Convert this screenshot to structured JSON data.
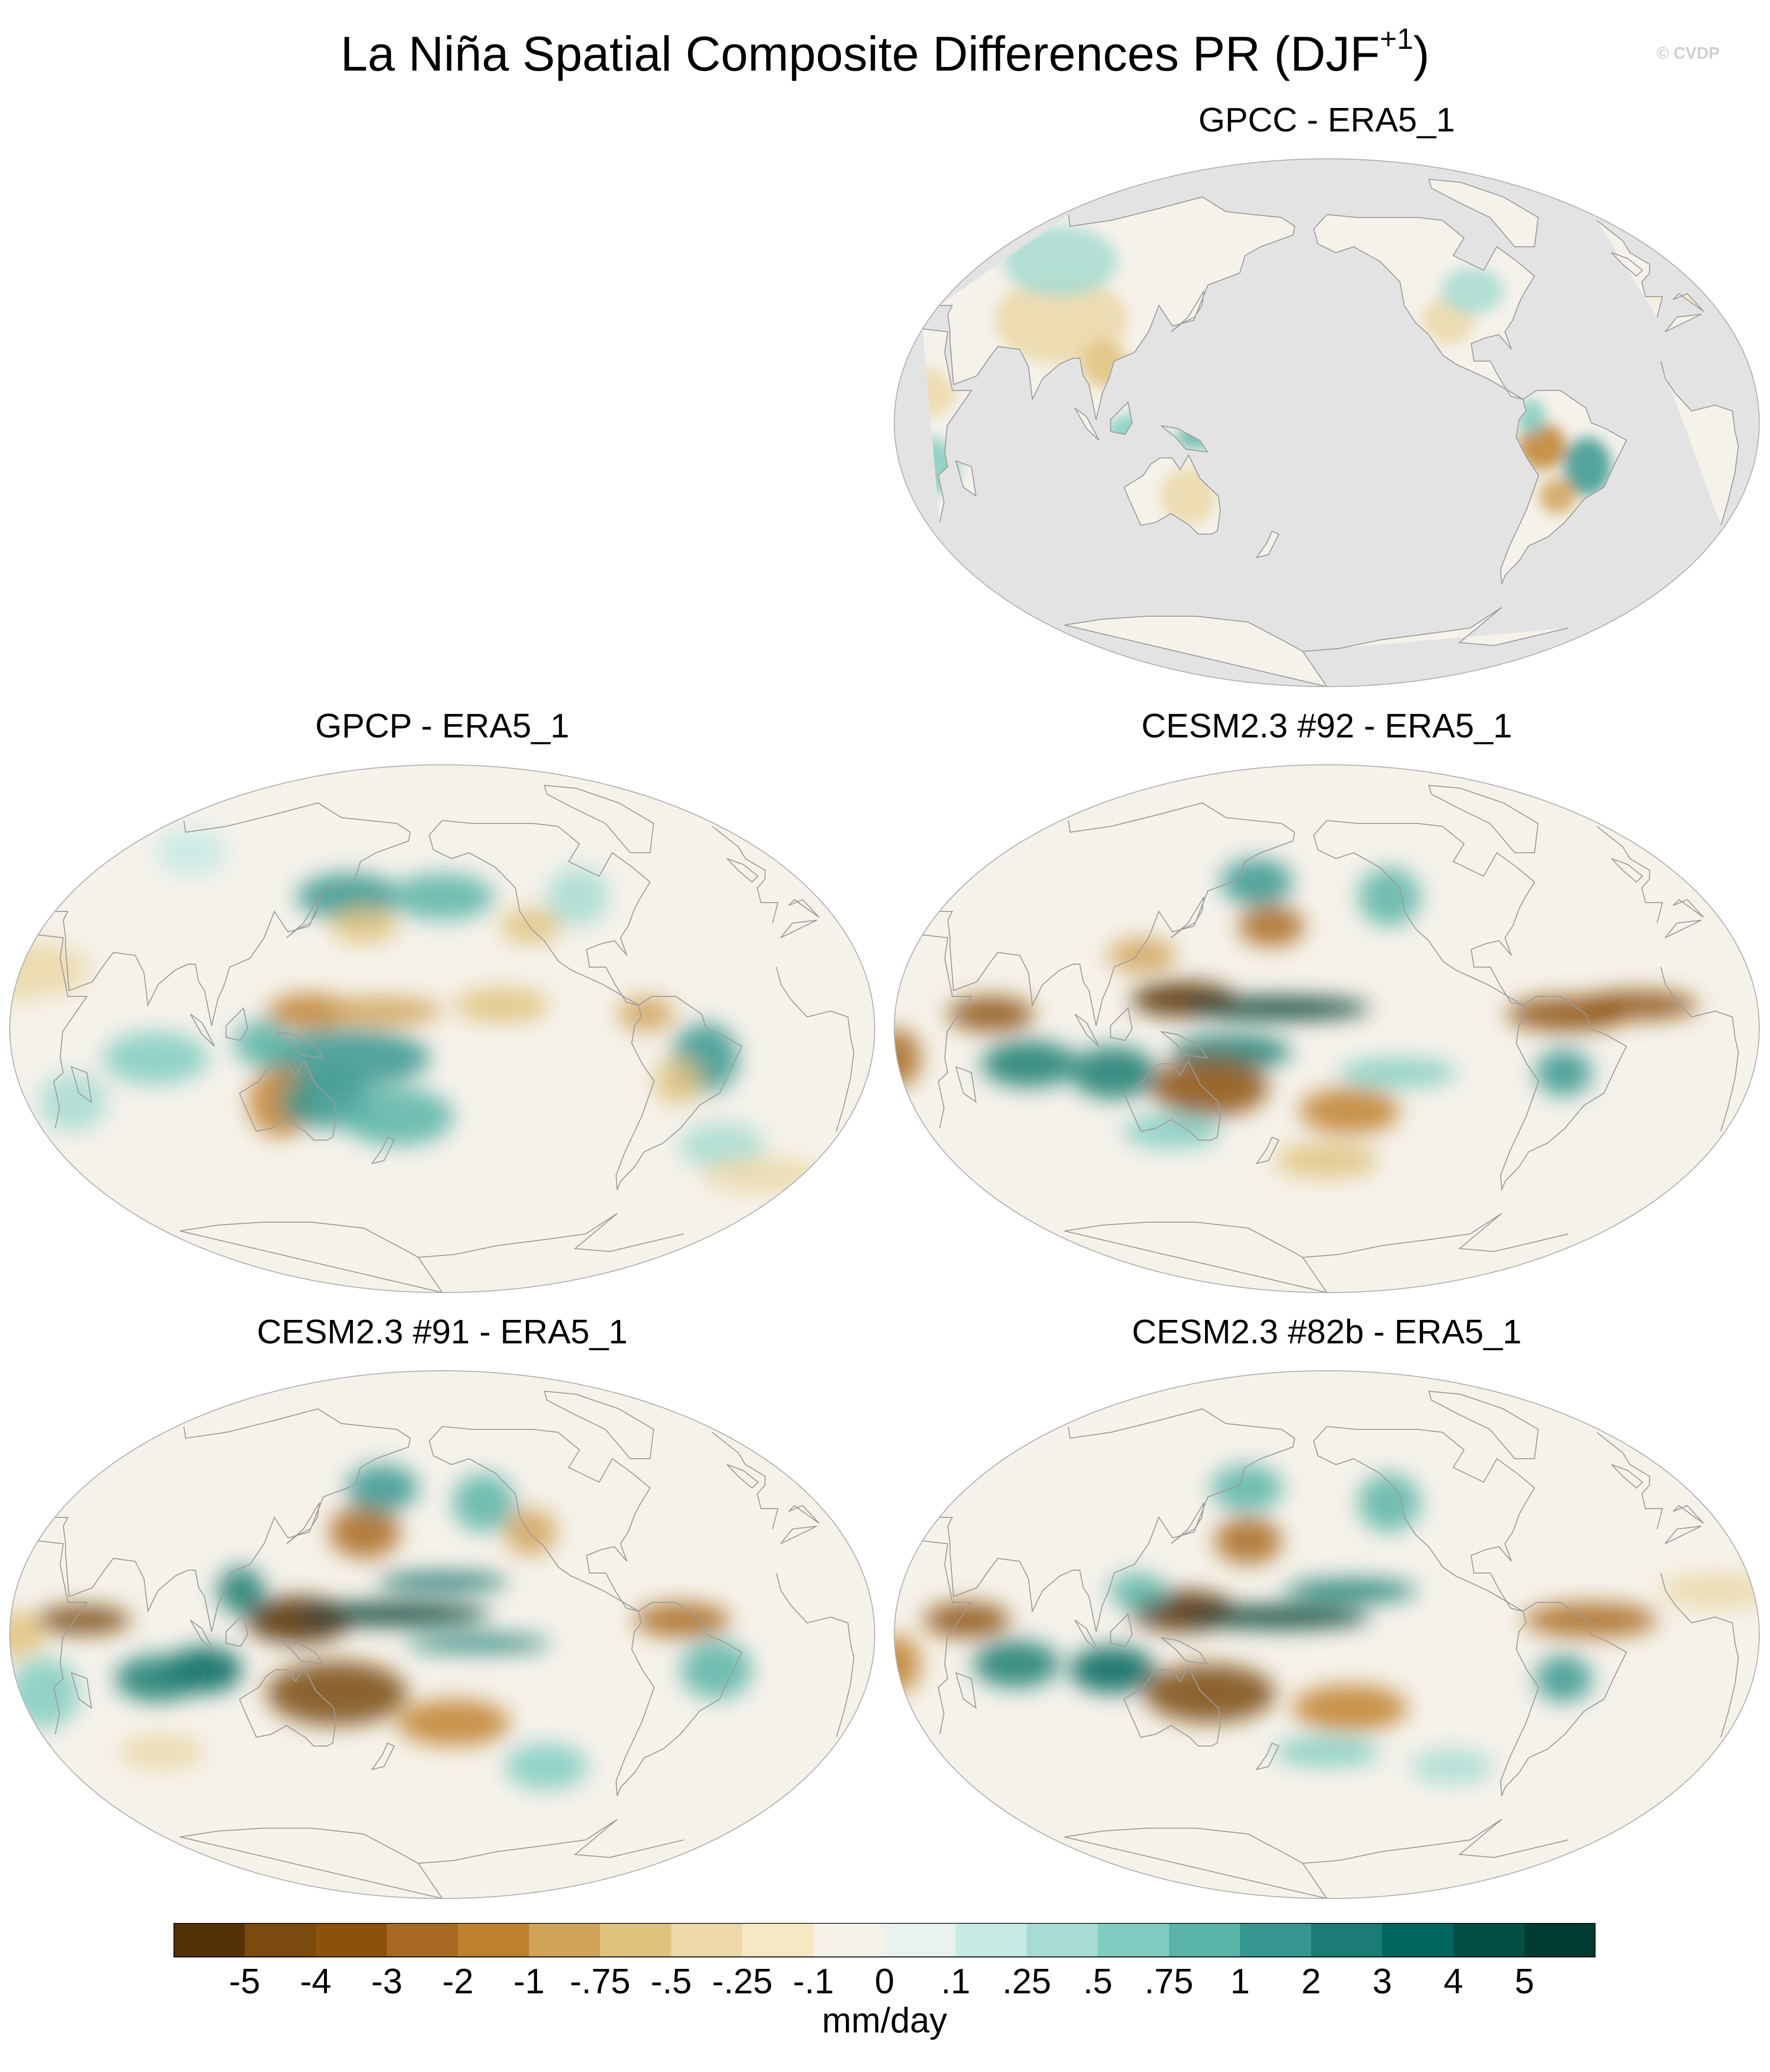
{
  "title": "La Niña Spatial Composite Differences PR (DJF",
  "title_sup": "+1",
  "title_close": ")",
  "watermark": "© CVDP",
  "colors": {
    "ocean_masked": "#e3e3e3",
    "coast": "#9c9c9c",
    "border": "#b0b0b0"
  },
  "panels": [
    {
      "id": "gpcc",
      "title": "GPCC - ERA5_1",
      "land_only": true
    },
    {
      "id": "gpcp",
      "title": "GPCP - ERA5_1",
      "land_only": false
    },
    {
      "id": "cesm92",
      "title": "CESM2.3 #92 - ERA5_1",
      "land_only": false
    },
    {
      "id": "cesm91",
      "title": "CESM2.3 #91 - ERA5_1",
      "land_only": false
    },
    {
      "id": "cesm82b",
      "title": "CESM2.3 #82b - ERA5_1",
      "land_only": false
    }
  ],
  "colorbar": {
    "units": "mm/day",
    "labels": [
      "-5",
      "-4",
      "-3",
      "-2",
      "-1",
      "-.75",
      "-.5",
      "-.25",
      "-.1",
      "0",
      ".1",
      ".25",
      ".5",
      ".75",
      "1",
      "2",
      "3",
      "4",
      "5"
    ],
    "colors": [
      "#543005",
      "#7a4a0e",
      "#8c510a",
      "#a86a22",
      "#bf812d",
      "#d0a35a",
      "#dfc27d",
      "#ecd8a8",
      "#f6e8c3",
      "#f5f2ea",
      "#e8f2ef",
      "#c7eae5",
      "#a7dcd2",
      "#80cdc1",
      "#5ab4a8",
      "#35978f",
      "#1a7c72",
      "#01665e",
      "#014f45",
      "#003c30"
    ]
  }
}
